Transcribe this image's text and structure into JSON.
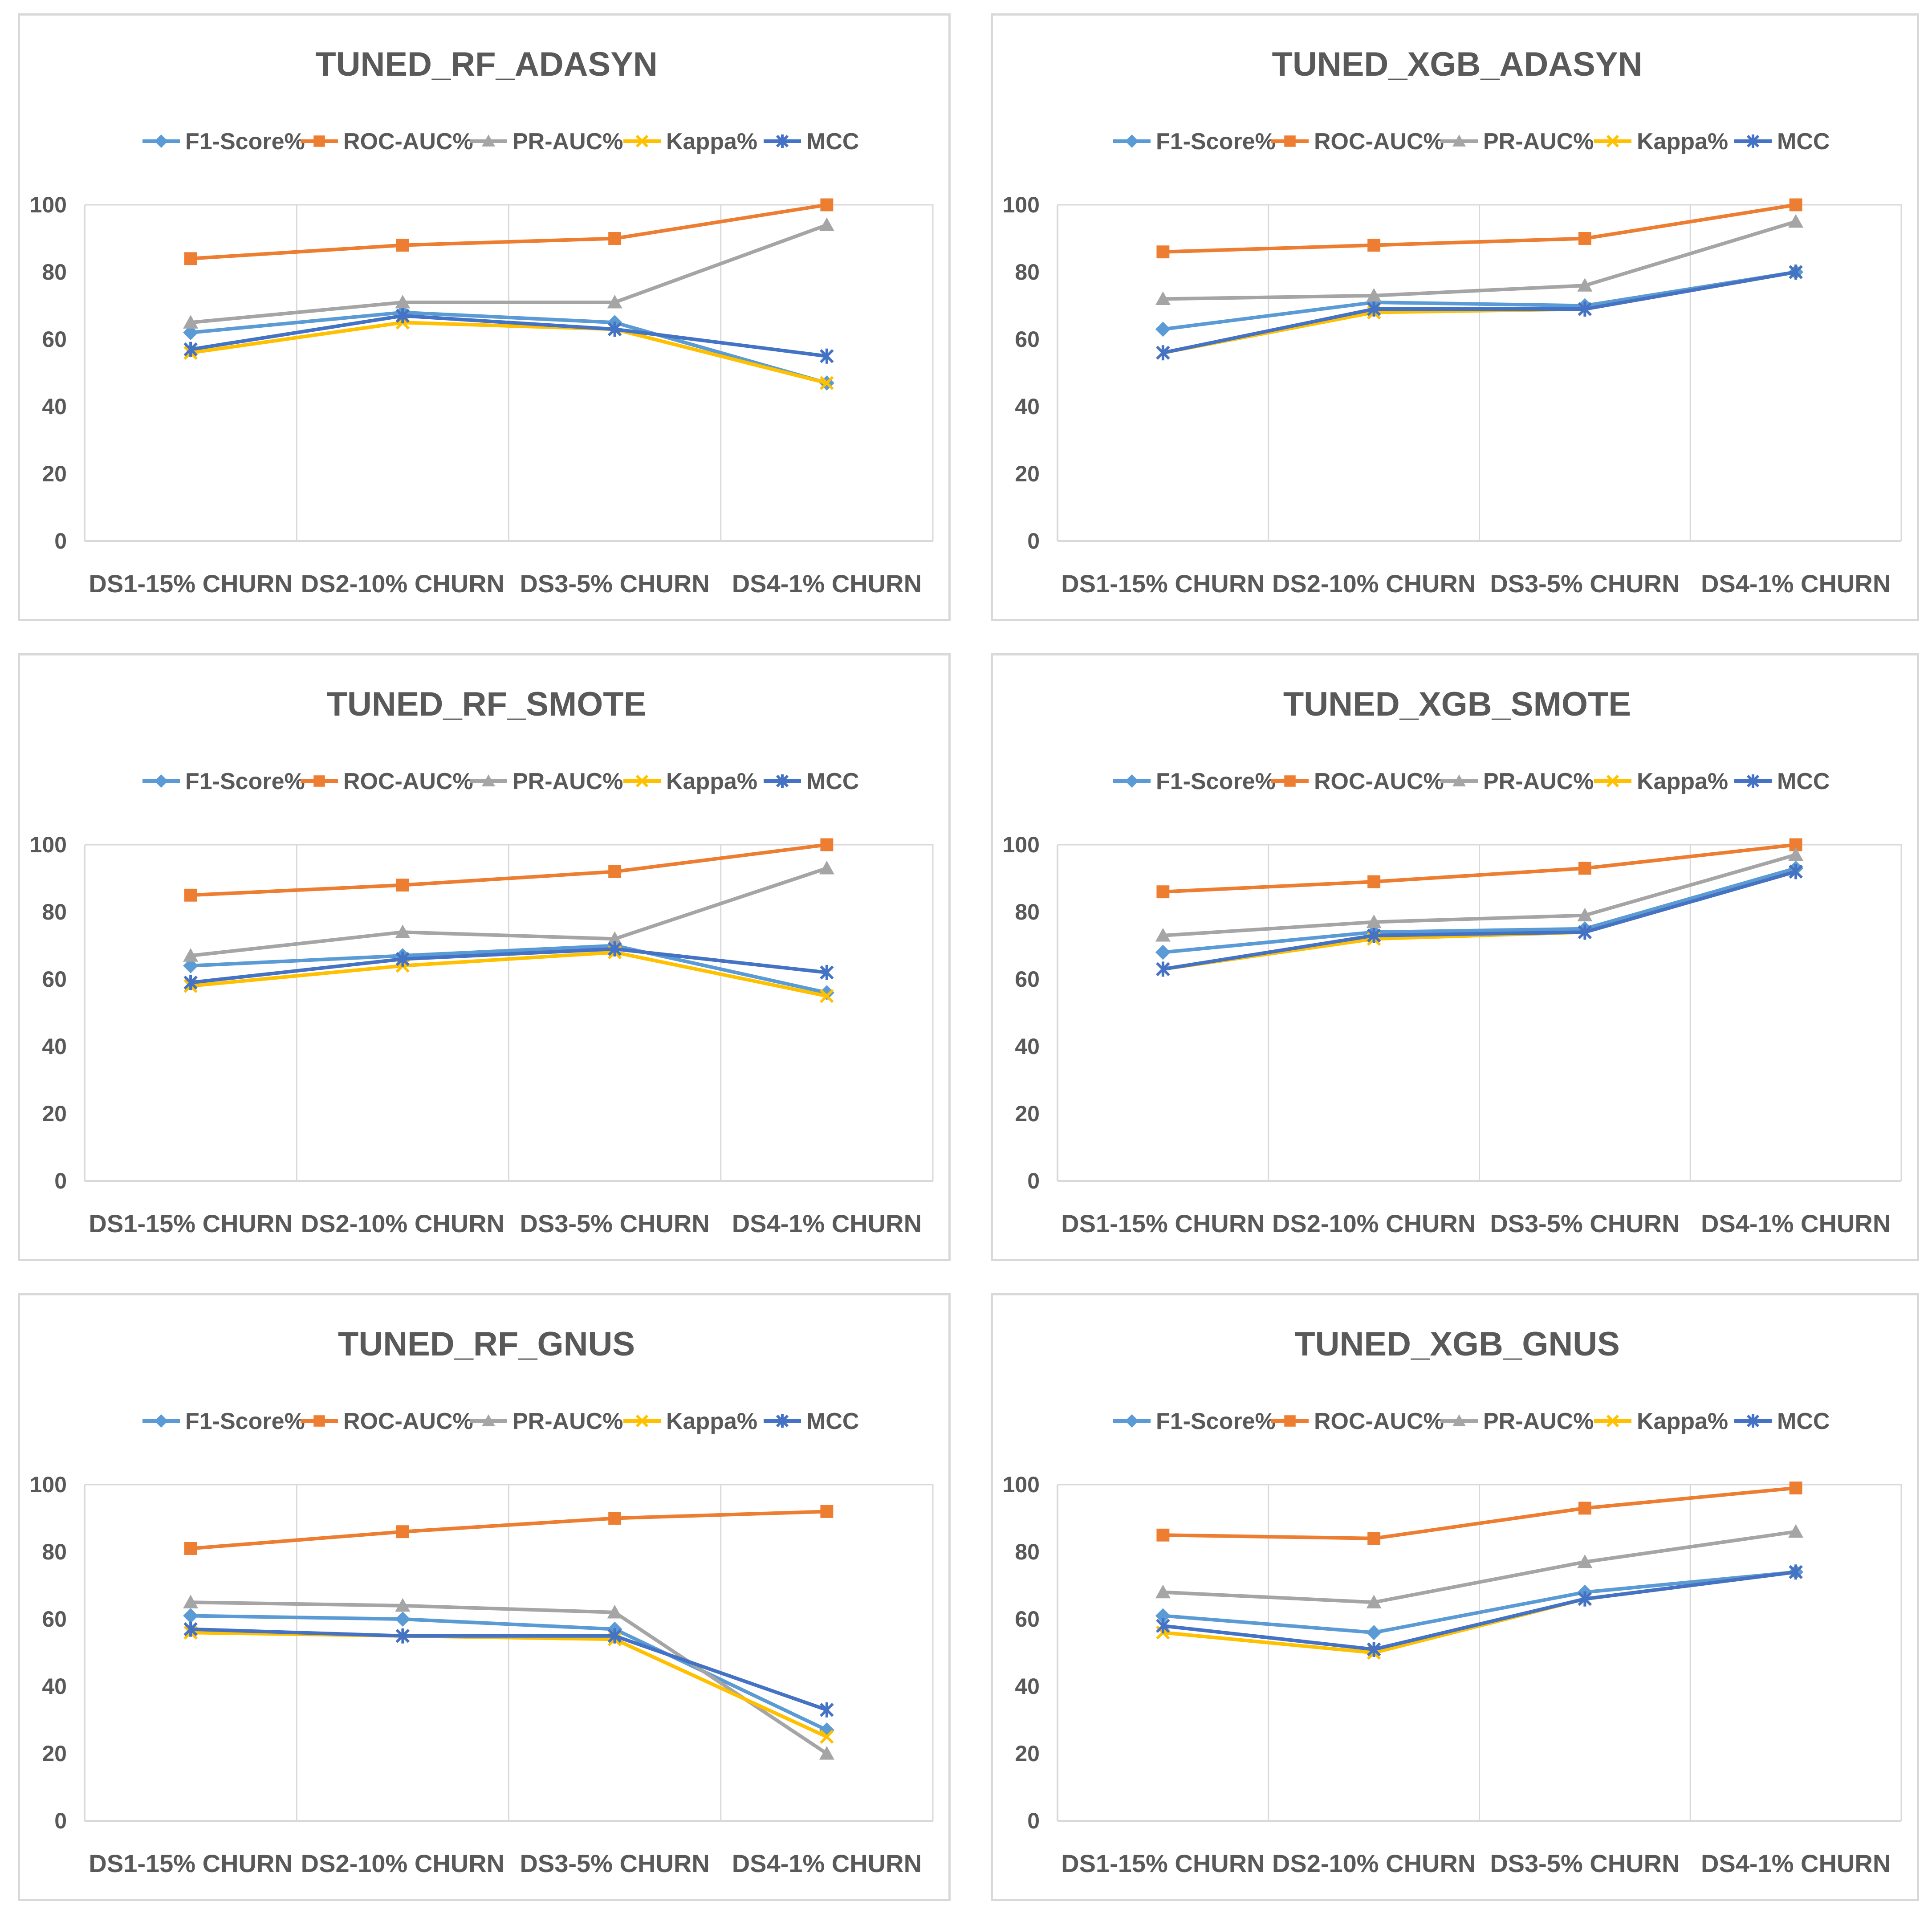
{
  "chart_data": [
    {
      "type": "line",
      "title": "TUNED_RF_ADASYN",
      "categories": [
        "DS1-15% CHURN",
        "DS2-10% CHURN",
        "DS3-5% CHURN",
        "DS4-1% CHURN"
      ],
      "ylim": [
        0,
        100
      ],
      "yticks": [
        0,
        20,
        40,
        60,
        80,
        100
      ],
      "series": [
        {
          "name": "F1-Score%",
          "values": [
            62,
            68,
            65,
            47
          ]
        },
        {
          "name": "ROC-AUC%",
          "values": [
            84,
            88,
            90,
            100
          ]
        },
        {
          "name": "PR-AUC%",
          "values": [
            65,
            71,
            71,
            94
          ]
        },
        {
          "name": "Kappa%",
          "values": [
            56,
            65,
            63,
            47
          ]
        },
        {
          "name": "MCC",
          "values": [
            57,
            67,
            63,
            55
          ]
        }
      ]
    },
    {
      "type": "line",
      "title": "TUNED_XGB_ADASYN",
      "categories": [
        "DS1-15% CHURN",
        "DS2-10% CHURN",
        "DS3-5% CHURN",
        "DS4-1% CHURN"
      ],
      "ylim": [
        0,
        100
      ],
      "yticks": [
        0,
        20,
        40,
        60,
        80,
        100
      ],
      "series": [
        {
          "name": "F1-Score%",
          "values": [
            63,
            71,
            70,
            80
          ]
        },
        {
          "name": "ROC-AUC%",
          "values": [
            86,
            88,
            90,
            100
          ]
        },
        {
          "name": "PR-AUC%",
          "values": [
            72,
            73,
            76,
            95
          ]
        },
        {
          "name": "Kappa%",
          "values": [
            56,
            68,
            69,
            80
          ]
        },
        {
          "name": "MCC",
          "values": [
            56,
            69,
            69,
            80
          ]
        }
      ]
    },
    {
      "type": "line",
      "title": "TUNED_RF_SMOTE",
      "categories": [
        "DS1-15% CHURN",
        "DS2-10% CHURN",
        "DS3-5% CHURN",
        "DS4-1% CHURN"
      ],
      "ylim": [
        0,
        100
      ],
      "yticks": [
        0,
        20,
        40,
        60,
        80,
        100
      ],
      "series": [
        {
          "name": "F1-Score%",
          "values": [
            64,
            67,
            70,
            56
          ]
        },
        {
          "name": "ROC-AUC%",
          "values": [
            85,
            88,
            92,
            100
          ]
        },
        {
          "name": "PR-AUC%",
          "values": [
            67,
            74,
            72,
            93
          ]
        },
        {
          "name": "Kappa%",
          "values": [
            58,
            64,
            68,
            55
          ]
        },
        {
          "name": "MCC",
          "values": [
            59,
            66,
            69,
            62
          ]
        }
      ]
    },
    {
      "type": "line",
      "title": "TUNED_XGB_SMOTE",
      "categories": [
        "DS1-15% CHURN",
        "DS2-10% CHURN",
        "DS3-5% CHURN",
        "DS4-1% CHURN"
      ],
      "ylim": [
        0,
        100
      ],
      "yticks": [
        0,
        20,
        40,
        60,
        80,
        100
      ],
      "series": [
        {
          "name": "F1-Score%",
          "values": [
            68,
            74,
            75,
            93
          ]
        },
        {
          "name": "ROC-AUC%",
          "values": [
            86,
            89,
            93,
            100
          ]
        },
        {
          "name": "PR-AUC%",
          "values": [
            73,
            77,
            79,
            97
          ]
        },
        {
          "name": "Kappa%",
          "values": [
            63,
            72,
            74,
            92
          ]
        },
        {
          "name": "MCC",
          "values": [
            63,
            73,
            74,
            92
          ]
        }
      ]
    },
    {
      "type": "line",
      "title": "TUNED_RF_GNUS",
      "categories": [
        "DS1-15% CHURN",
        "DS2-10% CHURN",
        "DS3-5% CHURN",
        "DS4-1% CHURN"
      ],
      "ylim": [
        0,
        100
      ],
      "yticks": [
        0,
        20,
        40,
        60,
        80,
        100
      ],
      "series": [
        {
          "name": "F1-Score%",
          "values": [
            61,
            60,
            57,
            27
          ]
        },
        {
          "name": "ROC-AUC%",
          "values": [
            81,
            86,
            90,
            92
          ]
        },
        {
          "name": "PR-AUC%",
          "values": [
            65,
            64,
            62,
            20
          ]
        },
        {
          "name": "Kappa%",
          "values": [
            56,
            55,
            54,
            25
          ]
        },
        {
          "name": "MCC",
          "values": [
            57,
            55,
            55,
            33
          ]
        }
      ]
    },
    {
      "type": "line",
      "title": "TUNED_XGB_GNUS",
      "categories": [
        "DS1-15% CHURN",
        "DS2-10% CHURN",
        "DS3-5% CHURN",
        "DS4-1% CHURN"
      ],
      "ylim": [
        0,
        100
      ],
      "yticks": [
        0,
        20,
        40,
        60,
        80,
        100
      ],
      "series": [
        {
          "name": "F1-Score%",
          "values": [
            61,
            56,
            68,
            74
          ]
        },
        {
          "name": "ROC-AUC%",
          "values": [
            85,
            84,
            93,
            99
          ]
        },
        {
          "name": "PR-AUC%",
          "values": [
            68,
            65,
            77,
            86
          ]
        },
        {
          "name": "Kappa%",
          "values": [
            56,
            50,
            66,
            74
          ]
        },
        {
          "name": "MCC",
          "values": [
            58,
            51,
            66,
            74
          ]
        }
      ]
    }
  ],
  "series_styles": [
    {
      "name": "F1-Score%",
      "color": "#5b9bd5",
      "marker": "diamond"
    },
    {
      "name": "ROC-AUC%",
      "color": "#ed7d31",
      "marker": "square"
    },
    {
      "name": "PR-AUC%",
      "color": "#a5a5a5",
      "marker": "triangle"
    },
    {
      "name": "Kappa%",
      "color": "#ffc000",
      "marker": "x"
    },
    {
      "name": "MCC",
      "color": "#4472c4",
      "marker": "star"
    }
  ],
  "colors": {
    "axis": "#d9d9d9",
    "gridline": "#d9d9d9",
    "text": "#595959",
    "panel_border": "#d9d9d9"
  }
}
